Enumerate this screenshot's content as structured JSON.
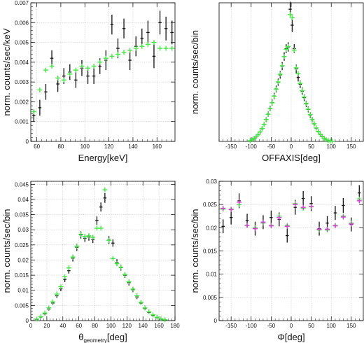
{
  "chart_data": [
    {
      "type": "scatter",
      "xlabel": "Energy[keV]",
      "ylabel": "norm. counts/sec/keV",
      "xlim": [
        55,
        175
      ],
      "ylim": [
        0,
        0.007
      ],
      "xticks": [
        60,
        80,
        100,
        120,
        140,
        160
      ],
      "yticks": [
        0,
        0.001,
        0.002,
        0.003,
        0.004,
        0.005,
        0.006,
        0.007
      ],
      "xtick_labels": [
        "60",
        "80",
        "100",
        "120",
        "140",
        "160"
      ],
      "ytick_labels": [
        "0",
        "0.001",
        "0.002",
        "0.003",
        "0.004",
        "0.005",
        "0.006",
        "0.007"
      ],
      "grid": true,
      "series": [
        {
          "color": "#111111",
          "marker": "errorbar",
          "x": [
            57.5,
            62.5,
            67.5,
            72.5,
            77.5,
            82.5,
            87.5,
            92.5,
            97.5,
            102.5,
            107.5,
            112.5,
            117.5,
            122.5,
            127.5,
            132.5,
            137.5,
            142.5,
            147.5,
            152.5,
            157.5,
            162.5,
            167.5,
            172.5
          ],
          "y": [
            0.0013,
            0.0017,
            0.0025,
            0.0042,
            0.0029,
            0.0033,
            0.0035,
            0.0031,
            0.0037,
            0.0033,
            0.0033,
            0.0038,
            0.0041,
            0.0059,
            0.0047,
            0.0057,
            0.0041,
            0.0048,
            0.0052,
            0.0055,
            0.0043,
            0.006,
            0.0057,
            0.0055
          ],
          "yerr": [
            0.0003,
            0.0004,
            0.0004,
            0.0004,
            0.0004,
            0.0004,
            0.0004,
            0.0004,
            0.0004,
            0.0004,
            0.0004,
            0.0004,
            0.0005,
            0.0005,
            0.0005,
            0.0005,
            0.0005,
            0.0005,
            0.0005,
            0.0006,
            0.0006,
            0.0006,
            0.0006,
            0.0006
          ]
        },
        {
          "color": "#44e844",
          "marker": "cross",
          "x": [
            57.5,
            62.5,
            67.5,
            72.5,
            77.5,
            82.5,
            87.5,
            92.5,
            97.5,
            102.5,
            107.5,
            112.5,
            117.5,
            122.5,
            127.5,
            132.5,
            137.5,
            142.5,
            147.5,
            152.5,
            157.5,
            162.5,
            167.5,
            172.5
          ],
          "y": [
            0.0015,
            0.0026,
            0.0036,
            0.0038,
            0.0032,
            0.0031,
            0.0034,
            0.0036,
            0.0038,
            0.0037,
            0.0038,
            0.004,
            0.0042,
            0.0043,
            0.0044,
            0.0045,
            0.0046,
            0.0047,
            0.0048,
            0.0049,
            0.005,
            0.0047,
            0.0047,
            0.0047
          ]
        }
      ]
    },
    {
      "type": "scatter",
      "xlabel": "OFFAXIS[deg]",
      "ylabel": "norm. counts/sec/bin",
      "xlim": [
        -180,
        180
      ],
      "ylim": [
        0,
        0.065
      ],
      "xticks": [
        -150,
        -100,
        -50,
        0,
        50,
        100,
        150
      ],
      "xtick_labels": [
        "-150",
        "-100",
        "-50",
        "0",
        "50",
        "100",
        "150"
      ],
      "grid": true,
      "series": [
        {
          "color": "#111111",
          "marker": "errorbar",
          "x": [
            -102.5,
            -97.5,
            -92.5,
            -87.5,
            -82.5,
            -77.5,
            -72.5,
            -67.5,
            -62.5,
            -57.5,
            -52.5,
            -47.5,
            -42.5,
            -37.5,
            -32.5,
            -27.5,
            -22.5,
            -17.5,
            -12.5,
            -7.5,
            -2.5,
            2.5,
            7.5,
            12.5,
            17.5,
            22.5,
            27.5,
            32.5,
            37.5,
            42.5,
            47.5,
            52.5,
            57.5,
            62.5,
            67.5,
            72.5,
            77.5,
            82.5,
            87.5,
            92.5,
            97.5,
            102.5
          ],
          "y": [
            0.0003,
            0.0007,
            0.0013,
            0.0021,
            0.0031,
            0.0044,
            0.006,
            0.008,
            0.0102,
            0.0128,
            0.0154,
            0.0182,
            0.0213,
            0.0246,
            0.0278,
            0.0312,
            0.0353,
            0.0398,
            0.0435,
            0.0443,
            0.062,
            0.0545,
            0.0435,
            0.034,
            0.03,
            0.0268,
            0.0236,
            0.0205,
            0.0176,
            0.015,
            0.0124,
            0.0102,
            0.0082,
            0.0062,
            0.0046,
            0.0033,
            0.0022,
            0.0014,
            0.0008,
            0.0004,
            0.0002,
            0.0001
          ],
          "yerr": [
            0.0003,
            0.0005,
            0.0005,
            0.0006,
            0.0007,
            0.0008,
            0.0009,
            0.001,
            0.0011,
            0.0012,
            0.0013,
            0.0014,
            0.0015,
            0.0016,
            0.0017,
            0.0018,
            0.0019,
            0.002,
            0.0021,
            0.0022,
            0.0035,
            0.0032,
            0.0021,
            0.002,
            0.0019,
            0.0018,
            0.0017,
            0.0016,
            0.0015,
            0.0014,
            0.0013,
            0.0012,
            0.0011,
            0.001,
            0.0009,
            0.0008,
            0.0007,
            0.0006,
            0.0005,
            0.0004,
            0.0003,
            0.0002
          ]
        },
        {
          "color": "#44e844",
          "marker": "cross",
          "x": [
            -102.5,
            -97.5,
            -92.5,
            -87.5,
            -82.5,
            -77.5,
            -72.5,
            -67.5,
            -62.5,
            -57.5,
            -52.5,
            -47.5,
            -42.5,
            -37.5,
            -32.5,
            -27.5,
            -22.5,
            -17.5,
            -12.5,
            -7.5,
            -2.5,
            2.5,
            7.5,
            12.5,
            17.5,
            22.5,
            27.5,
            32.5,
            37.5,
            42.5,
            47.5,
            52.5,
            57.5,
            62.5,
            67.5,
            72.5,
            77.5,
            82.5,
            87.5,
            92.5,
            97.5,
            102.5
          ],
          "y": [
            0.0003,
            0.0008,
            0.0014,
            0.0022,
            0.0032,
            0.0045,
            0.0061,
            0.008,
            0.0103,
            0.0127,
            0.0153,
            0.0181,
            0.0212,
            0.0245,
            0.0279,
            0.0315,
            0.0355,
            0.0398,
            0.0432,
            0.0445,
            0.0595,
            0.058,
            0.0428,
            0.0345,
            0.0318,
            0.0272,
            0.0238,
            0.0208,
            0.0178,
            0.0151,
            0.0126,
            0.0103,
            0.0083,
            0.0063,
            0.0047,
            0.0034,
            0.0023,
            0.0014,
            0.0008,
            0.0004,
            0.0002,
            0.0001
          ]
        }
      ]
    },
    {
      "type": "scatter",
      "xlabel": "θ",
      "xlabel_sub": "geometry",
      "xlabel_suffix": "[deg]",
      "ylabel": "norm. counts/sec/bin",
      "xlim": [
        0,
        180
      ],
      "ylim": [
        0,
        0.046
      ],
      "xticks": [
        0,
        20,
        40,
        60,
        80,
        100,
        120,
        140,
        160,
        180
      ],
      "yticks": [
        0,
        0.005,
        0.01,
        0.015,
        0.02,
        0.025,
        0.03,
        0.035,
        0.04,
        0.045
      ],
      "xtick_labels": [
        "0",
        "20",
        "40",
        "60",
        "80",
        "100",
        "120",
        "140",
        "160",
        "180"
      ],
      "ytick_labels": [
        "0",
        "0.005",
        "0.01",
        "0.015",
        "0.02",
        "0.025",
        "0.03",
        "0.035",
        "0.04",
        "0.045"
      ],
      "grid": true,
      "series": [
        {
          "color": "#111111",
          "marker": "errorbar",
          "x": [
            7.5,
            12.5,
            17.5,
            22.5,
            27.5,
            32.5,
            37.5,
            42.5,
            47.5,
            52.5,
            57.5,
            62.5,
            67.5,
            72.5,
            77.5,
            82.5,
            87.5,
            92.5,
            97.5,
            102.5,
            107.5,
            112.5,
            117.5,
            122.5,
            127.5,
            132.5,
            137.5,
            142.5,
            147.5,
            152.5,
            157.5,
            162.5,
            167.5
          ],
          "y": [
            0.0004,
            0.0012,
            0.0022,
            0.0038,
            0.0058,
            0.0082,
            0.0105,
            0.0136,
            0.0165,
            0.0206,
            0.0242,
            0.0283,
            0.0272,
            0.0276,
            0.0268,
            0.033,
            0.0375,
            0.0405,
            0.0266,
            0.0256,
            0.0192,
            0.0175,
            0.015,
            0.0125,
            0.0102,
            0.0078,
            0.0058,
            0.004,
            0.0027,
            0.0017,
            0.001,
            0.0005,
            0.0002
          ],
          "yerr": [
            0.0002,
            0.0003,
            0.0004,
            0.0005,
            0.0006,
            0.0007,
            0.0008,
            0.0009,
            0.001,
            0.0011,
            0.0012,
            0.0012,
            0.0012,
            0.0012,
            0.0012,
            0.0014,
            0.0015,
            0.0016,
            0.0013,
            0.0012,
            0.0011,
            0.001,
            0.0009,
            0.0009,
            0.0008,
            0.0007,
            0.0006,
            0.0005,
            0.0004,
            0.0003,
            0.0003,
            0.0002,
            0.0002
          ]
        },
        {
          "color": "#44e844",
          "marker": "cross",
          "x": [
            7.5,
            12.5,
            17.5,
            22.5,
            27.5,
            32.5,
            37.5,
            42.5,
            47.5,
            52.5,
            57.5,
            62.5,
            67.5,
            72.5,
            77.5,
            82.5,
            87.5,
            92.5,
            97.5,
            102.5,
            107.5,
            112.5,
            117.5,
            122.5,
            127.5,
            132.5,
            137.5,
            142.5,
            147.5,
            152.5,
            157.5,
            162.5,
            167.5
          ],
          "y": [
            0.0005,
            0.0013,
            0.0025,
            0.0042,
            0.0062,
            0.0088,
            0.0112,
            0.0145,
            0.0174,
            0.021,
            0.0245,
            0.0285,
            0.0278,
            0.028,
            0.0275,
            0.0305,
            0.0305,
            0.0432,
            0.0265,
            0.0205,
            0.0188,
            0.0176,
            0.0152,
            0.0128,
            0.0104,
            0.0082,
            0.006,
            0.0042,
            0.0029,
            0.0019,
            0.0011,
            0.0006,
            0.0003
          ]
        }
      ]
    },
    {
      "type": "scatter",
      "xlabel": "Φ[deg]",
      "ylabel": "norm. counts/sec/bin",
      "xlim": [
        -180,
        180
      ],
      "ylim": [
        0,
        0.03
      ],
      "xticks": [
        -150,
        -100,
        -50,
        0,
        50,
        100,
        150
      ],
      "yticks": [
        0,
        0.005,
        0.01,
        0.015,
        0.02,
        0.025,
        0.03
      ],
      "xtick_labels": [
        "-150",
        "-100",
        "-50",
        "0",
        "50",
        "100",
        "150"
      ],
      "ytick_labels": [
        "0",
        "0.005",
        "0.01",
        "0.015",
        "0.02",
        "0.025",
        "0.03"
      ],
      "grid": true,
      "series": [
        {
          "color": "#111111",
          "marker": "errorbar",
          "x": [
            -170,
            -150,
            -130,
            -110,
            -90,
            -70,
            -50,
            -30,
            -10,
            10,
            30,
            50,
            70,
            90,
            110,
            130,
            150,
            170
          ],
          "y": [
            0.0203,
            0.0222,
            0.0258,
            0.0215,
            0.0198,
            0.0212,
            0.0222,
            0.0218,
            0.0183,
            0.0244,
            0.0263,
            0.0252,
            0.0198,
            0.021,
            0.0232,
            0.0248,
            0.0207,
            0.0275
          ],
          "yerr": [
            0.0015,
            0.0015,
            0.0016,
            0.0015,
            0.0015,
            0.0015,
            0.0015,
            0.0015,
            0.0015,
            0.0016,
            0.0016,
            0.0016,
            0.0015,
            0.0015,
            0.0015,
            0.0016,
            0.0015,
            0.0017
          ]
        },
        {
          "color": "#44e844",
          "marker": "cross",
          "x": [
            -170,
            -150,
            -130,
            -110,
            -90,
            -70,
            -50,
            -30,
            -10,
            10,
            30,
            50,
            70,
            90,
            110,
            130,
            150,
            170
          ],
          "y": [
            0.024,
            0.024,
            0.025,
            0.0205,
            0.02,
            0.021,
            0.0205,
            0.0225,
            0.0205,
            0.0252,
            0.0242,
            0.0245,
            0.0195,
            0.0195,
            0.0205,
            0.0225,
            0.021,
            0.0262
          ]
        },
        {
          "color": "#d63cd6",
          "marker": "cross",
          "x": [
            -170,
            -150,
            -130,
            -110,
            -90,
            -70,
            -50,
            -30,
            -10,
            10,
            30,
            50,
            70,
            90,
            110,
            130,
            150,
            170
          ],
          "y": [
            0.0242,
            0.0239,
            0.0255,
            0.0205,
            0.0198,
            0.0212,
            0.0204,
            0.0222,
            0.0203,
            0.025,
            0.0244,
            0.0246,
            0.0197,
            0.0197,
            0.0204,
            0.0223,
            0.0208,
            0.0258
          ]
        }
      ]
    }
  ]
}
